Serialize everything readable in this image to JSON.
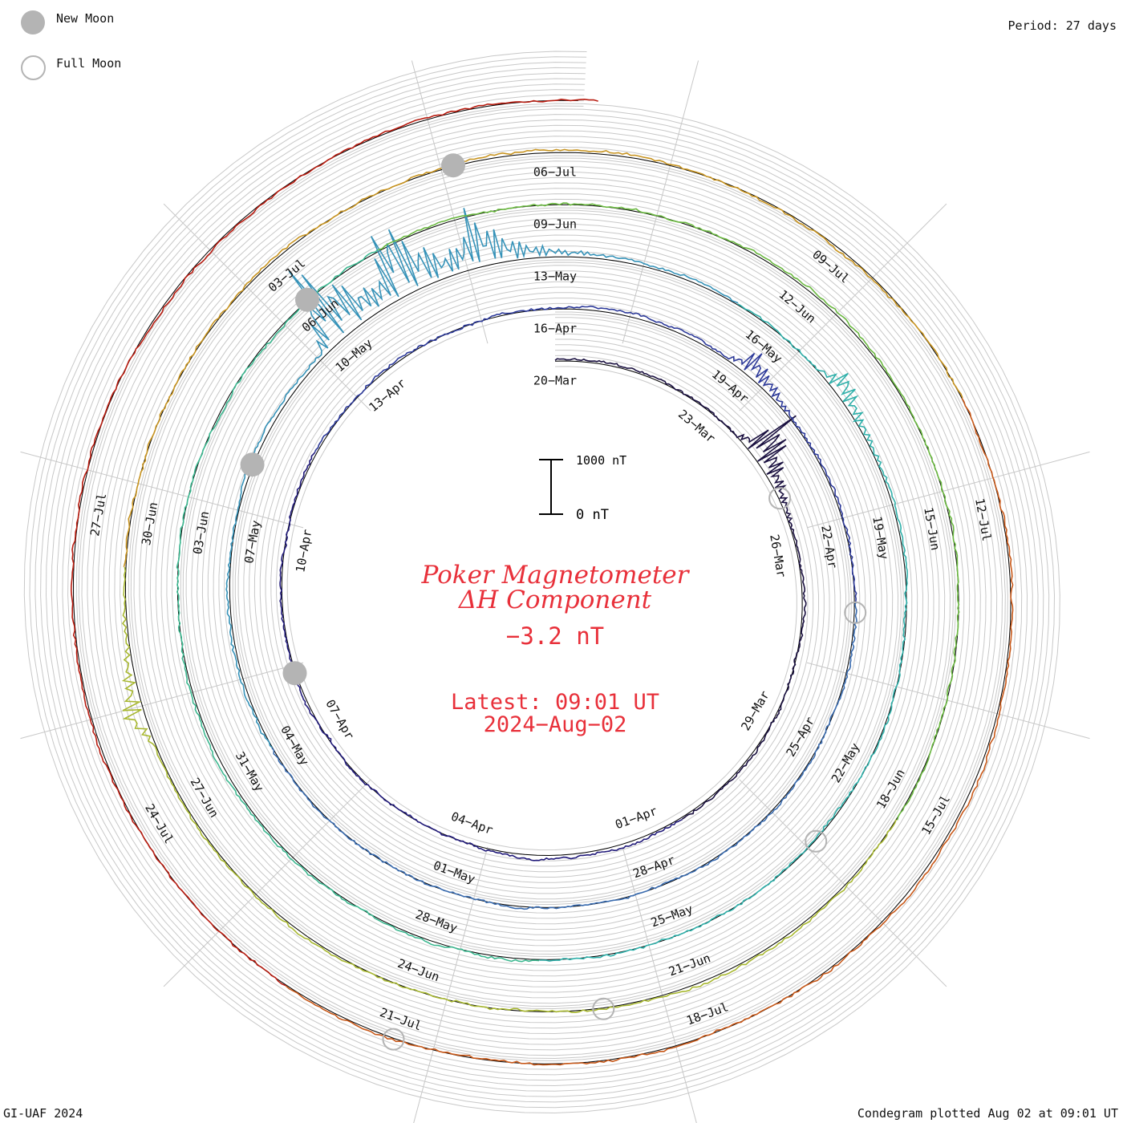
{
  "legend": {
    "new_moon": "New Moon",
    "full_moon": "Full Moon"
  },
  "period_label": "Period: 27 days",
  "footer_left": "GI-UAF 2024",
  "footer_right": "Condegram plotted Aug 02 at 09:01 UT",
  "title_line1": "Poker Magnetometer",
  "title_line2": "ΔH Component",
  "current_value": "−3.2 nT",
  "latest_line1": "Latest: 09:01 UT",
  "latest_line2": "2024−Aug−02",
  "scale": {
    "top_label": "1000 nT",
    "bottom_label": "0 nT"
  },
  "colors": {
    "title_red": "#e8303a",
    "grid": "#c8c8c8",
    "moon_fill": "#b4b4b4",
    "ref_circle": "#000000"
  },
  "chart_data": {
    "type": "line",
    "title": "Poker Magnetometer ΔH Component",
    "period_days": 27,
    "scale_nT": [
      0,
      1000
    ],
    "date_labels": [
      "20−Mar",
      "23−Mar",
      "26−Mar",
      "29−Mar",
      "01−Apr",
      "04−Apr",
      "07−Apr",
      "10−Apr",
      "13−Apr",
      "16−Apr",
      "19−Apr",
      "22−Apr",
      "25−Apr",
      "28−Apr",
      "01−May",
      "04−May",
      "07−May",
      "10−May",
      "13−May",
      "16−May",
      "19−May",
      "22−May",
      "25−May",
      "28−May",
      "31−May",
      "03−Jun",
      "06−Jun",
      "09−Jun",
      "12−Jun",
      "15−Jun",
      "18−Jun",
      "21−Jun",
      "24−Jun",
      "27−Jun",
      "30−Jun",
      "03−Jul",
      "06−Jul",
      "09−Jul",
      "12−Jul",
      "15−Jul",
      "18−Jul",
      "21−Jul",
      "24−Jul",
      "27−Jul"
    ],
    "series_colors": [
      "#1a1040",
      "#211a7a",
      "#2d3a9a",
      "#3a6cb0",
      "#3592b8",
      "#2fb0aa",
      "#3cb890",
      "#6ab840",
      "#a8b830",
      "#c89420",
      "#c85818",
      "#b81c10"
    ],
    "new_moon_dates": [
      "2024-04-08",
      "2024-05-08",
      "2024-06-06",
      "2024-07-05"
    ],
    "full_moon_dates": [
      "2024-03-25",
      "2024-04-23",
      "2024-05-23",
      "2024-06-22",
      "2024-07-21"
    ],
    "storms": [
      {
        "date": "2024-03-24",
        "value": 1100
      },
      {
        "date": "2024-04-19",
        "value": 500
      },
      {
        "date": "2024-05-10",
        "value": 1800
      },
      {
        "date": "2024-05-11",
        "value": 1500
      },
      {
        "date": "2024-05-12",
        "value": 900
      },
      {
        "date": "2024-05-17",
        "value": 500
      },
      {
        "date": "2024-06-28",
        "value": 450
      }
    ]
  }
}
